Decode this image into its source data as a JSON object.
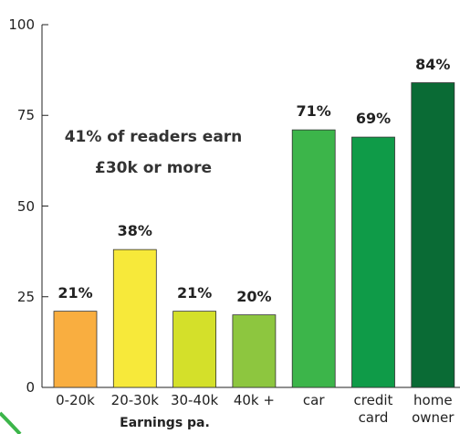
{
  "chart_data": {
    "type": "bar",
    "categories": [
      "0-20k",
      "20-30k",
      "30-40k",
      "40k +",
      "car",
      "credit card",
      "home owner"
    ],
    "values": [
      21,
      38,
      21,
      20,
      71,
      69,
      84
    ],
    "value_labels": [
      "21%",
      "38%",
      "21%",
      "20%",
      "71%",
      "69%",
      "84%"
    ],
    "colors": [
      "#f9ae40",
      "#f7e93a",
      "#d4e02a",
      "#8dc63f",
      "#3cb54a",
      "#0f9b48",
      "#0a6b35"
    ],
    "ylim": [
      0,
      100
    ],
    "yticks": [
      0,
      25,
      50,
      75,
      100
    ],
    "annotation": "41% of readers earn £30k or more",
    "x_label": "Earnings pa."
  }
}
